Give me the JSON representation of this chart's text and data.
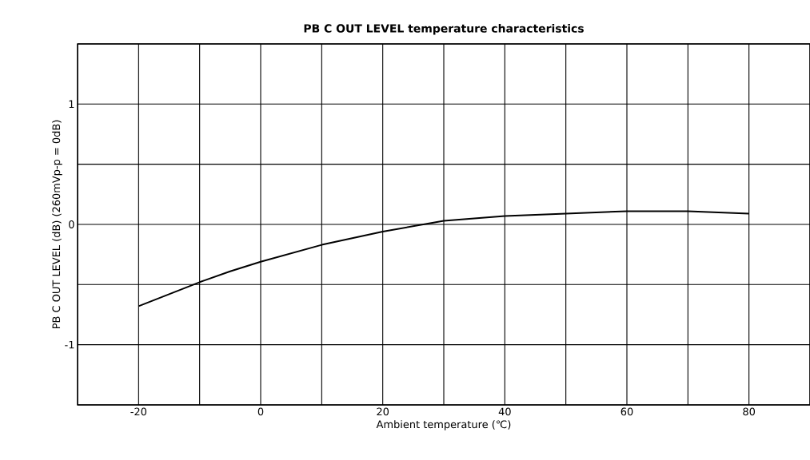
{
  "chart_data": {
    "type": "line",
    "title": "PB C OUT LEVEL temperature characteristics",
    "xlabel": "Ambient temperature (℃)",
    "ylabel": "PB C OUT LEVEL (dB) (260mVp-p = 0dB)",
    "x": [
      -20,
      -15,
      -10,
      -5,
      0,
      10,
      20,
      30,
      40,
      50,
      60,
      65,
      70,
      80
    ],
    "series": [
      {
        "color": "#000000",
        "values": [
          -0.68,
          -0.58,
          -0.48,
          -0.39,
          -0.31,
          -0.17,
          -0.06,
          0.03,
          0.07,
          0.09,
          0.11,
          0.11,
          0.11,
          0.09
        ]
      }
    ],
    "xlim": [
      -30,
      90
    ],
    "ylim": [
      -1.5,
      1.5
    ],
    "xticks": [
      {
        "value": -30,
        "label": null
      },
      -20,
      {
        "value": -10,
        "label": null
      },
      0,
      {
        "value": 10,
        "label": null
      },
      20,
      {
        "value": 30,
        "label": null
      },
      40,
      {
        "value": 50,
        "label": null
      },
      60,
      {
        "value": 70,
        "label": null
      },
      80,
      {
        "value": 90,
        "label": null
      }
    ],
    "yticks": [
      {
        "value": -1.5,
        "label": null
      },
      -1,
      {
        "value": -0.5,
        "label": null
      },
      0,
      {
        "value": 0.5,
        "label": null
      },
      1,
      {
        "value": 1.5,
        "label": null
      }
    ],
    "grid": true,
    "marker": "none",
    "line_style": "solid"
  }
}
